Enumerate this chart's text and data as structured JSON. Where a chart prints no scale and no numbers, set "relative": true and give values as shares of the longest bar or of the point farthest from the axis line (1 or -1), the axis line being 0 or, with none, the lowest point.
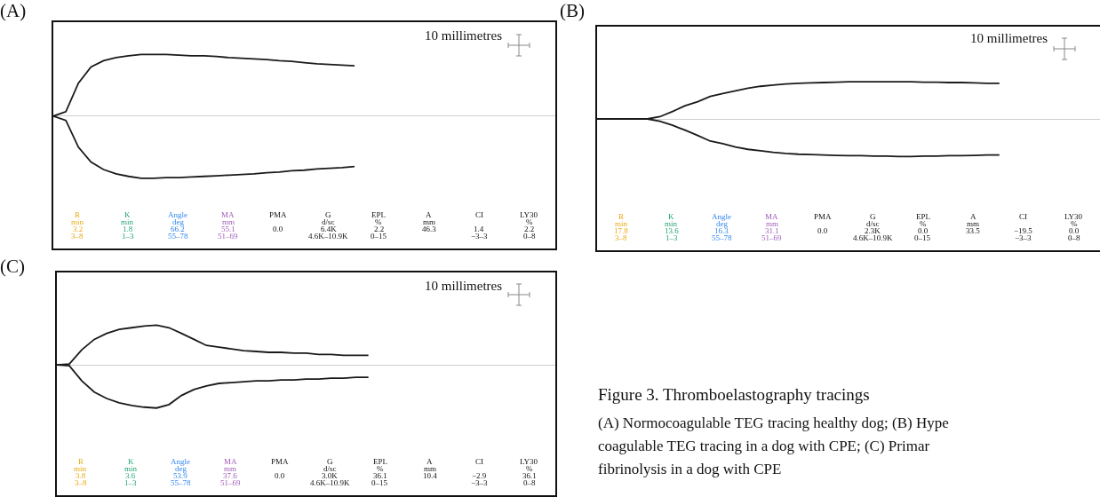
{
  "chart_data": [
    {
      "type": "line",
      "title": "(A)",
      "relative": true,
      "categories": [
        null,
        null,
        null,
        null,
        null,
        null,
        null,
        null,
        null,
        null,
        null,
        null,
        null,
        null,
        null,
        null,
        null,
        null,
        null,
        null,
        null,
        null,
        null,
        null,
        null
      ],
      "series": [
        {
          "color": "#1a1a1a",
          "values": [
            0,
            0.07,
            0.53,
            0.79,
            0.89,
            0.94,
            0.97,
            0.99,
            0.99,
            0.99,
            0.98,
            0.97,
            0.97,
            0.96,
            0.94,
            0.93,
            0.92,
            0.91,
            0.89,
            0.88,
            0.86,
            0.84,
            0.83,
            0.82,
            0.81
          ]
        },
        {
          "color": "#1a1a1a",
          "values": [
            0,
            -0.07,
            -0.5,
            -0.74,
            -0.86,
            -0.93,
            -0.97,
            -1,
            -1,
            -0.99,
            -0.99,
            -0.98,
            -0.97,
            -0.96,
            -0.95,
            -0.94,
            -0.93,
            -0.91,
            -0.9,
            -0.88,
            -0.87,
            -0.85,
            -0.84,
            -0.83,
            -0.81
          ]
        }
      ],
      "annotations": [
        "10 millimetres",
        "R\nmin\n3.2\n3–8",
        "K\nmin\n1.8\n1–3",
        "Angle\ndeg\n66.2\n55–78",
        "MA\nmm\n55.1\n51–69",
        "PMA\n\n0.0\n",
        "G\nd/sc\n6.4K\n4.6K–10.9K",
        "EPL\n%\n2.2\n0–15",
        "A\nmm\n46.3\n",
        "CI\n\n1.4\n−3–3",
        "LY30\n%\n2.2\n0–8"
      ]
    },
    {
      "type": "line",
      "title": "(B)",
      "relative": true,
      "categories": [
        null,
        null,
        null,
        null,
        null,
        null,
        null,
        null,
        null,
        null,
        null,
        null,
        null,
        null,
        null,
        null,
        null,
        null,
        null,
        null,
        null,
        null,
        null,
        null,
        null,
        null,
        null,
        null,
        null,
        null,
        null,
        null,
        null
      ],
      "series": [
        {
          "color": "#1a1a1a",
          "values": [
            0,
            0,
            0,
            0,
            0,
            0.06,
            0.2,
            0.35,
            0.46,
            0.6,
            0.68,
            0.75,
            0.82,
            0.87,
            0.9,
            0.93,
            0.95,
            0.96,
            0.97,
            0.98,
            0.99,
            0.99,
            0.99,
            0.99,
            0.99,
            0.99,
            0.98,
            0.98,
            0.97,
            0.97,
            0.96,
            0.95,
            0.95
          ]
        },
        {
          "color": "#1a1a1a",
          "values": [
            0,
            0,
            0,
            0,
            0,
            -0.06,
            -0.17,
            -0.3,
            -0.44,
            -0.59,
            -0.66,
            -0.75,
            -0.81,
            -0.85,
            -0.89,
            -0.92,
            -0.94,
            -0.95,
            -0.96,
            -0.97,
            -0.98,
            -0.98,
            -0.99,
            -0.99,
            -1,
            -1,
            -0.99,
            -0.99,
            -0.98,
            -0.98,
            -0.97,
            -0.96,
            -0.96
          ]
        }
      ],
      "annotations": [
        "10 millimetres",
        "R\nmin\n17.8\n3–8",
        "K\nmin\n13.6\n1–3",
        "Angle\ndeg\n16.3\n55–78",
        "MA\nmm\n31.1\n51–69",
        "PMA\n\n0.0\n",
        "G\nd/sc\n2.3K\n4.6K–10.9K",
        "EPL\n%\n0.0\n0–15",
        "A\nmm\n33.5\n",
        "CI\n\n−19.5\n−3–3",
        "LY30\n%\n0.0\n0–8"
      ]
    },
    {
      "type": "line",
      "title": "(C)",
      "relative": true,
      "categories": [
        null,
        null,
        null,
        null,
        null,
        null,
        null,
        null,
        null,
        null,
        null,
        null,
        null,
        null,
        null,
        null,
        null,
        null,
        null,
        null,
        null,
        null,
        null,
        null,
        null,
        null
      ],
      "series": [
        {
          "color": "#1a1a1a",
          "values": [
            0,
            0.02,
            0.35,
            0.59,
            0.73,
            0.82,
            0.86,
            0.9,
            0.92,
            0.86,
            0.73,
            0.59,
            0.45,
            0.41,
            0.37,
            0.33,
            0.31,
            0.29,
            0.29,
            0.27,
            0.27,
            0.24,
            0.24,
            0.22,
            0.22,
            0.22
          ]
        },
        {
          "color": "#1a1a1a",
          "values": [
            0,
            -0.02,
            -0.37,
            -0.63,
            -0.78,
            -0.88,
            -0.94,
            -0.98,
            -1,
            -0.92,
            -0.71,
            -0.57,
            -0.49,
            -0.43,
            -0.41,
            -0.39,
            -0.37,
            -0.37,
            -0.35,
            -0.35,
            -0.33,
            -0.33,
            -0.31,
            -0.31,
            -0.29,
            -0.29
          ]
        }
      ],
      "annotations": [
        "10 millimetres",
        "R\nmin\n3.8\n3–8",
        "K\nmin\n3.6\n1–3",
        "Angle\ndeg\n53.9\n55–78",
        "MA\nmm\n37.6\n51–69",
        "PMA\n\n0.0\n",
        "G\nd/sc\n3.0K\n4.6K–10.9K",
        "EPL\n%\n36.1\n0–15",
        "A\nmm\n10.4\n",
        "CI\n\n−2.9\n−3–3",
        "LY30\n%\n36.1\n0–8"
      ]
    },
    {
      "type": "other",
      "title": "Figure 3. Thromboelastography tracings",
      "annotations": [
        "(A) Normocoagulable TEG tracing healthy dog; (B) Hype",
        "coagulable TEG tracing in a dog with CPE; (C) Primar",
        "fibrinolysis in a dog with CPE"
      ]
    }
  ]
}
